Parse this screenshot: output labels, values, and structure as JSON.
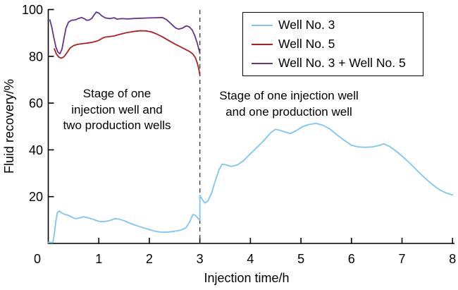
{
  "chart_data": {
    "type": "line",
    "title": "",
    "xlabel": "Injection time/h",
    "ylabel": "Fluid recovery/%",
    "xlim": [
      0,
      8
    ],
    "ylim": [
      0,
      100
    ],
    "x_ticks": [
      0,
      1,
      2,
      3,
      4,
      5,
      6,
      7,
      8
    ],
    "y_ticks": [
      20,
      40,
      60,
      80,
      100
    ],
    "grid": false,
    "legend_position": "top-right",
    "stage_divider_x": 3,
    "divider_color": "#3f3f3f",
    "axis_color": "#000000",
    "series": [
      {
        "name": "Well No. 3",
        "color": "#7EC5F2",
        "points": [
          [
            0,
            0.4
          ],
          [
            0.09,
            0.4
          ],
          [
            0.12,
            4
          ],
          [
            0.15,
            9.5
          ],
          [
            0.18,
            13.2
          ],
          [
            0.22,
            13.9
          ],
          [
            0.27,
            13.0
          ],
          [
            0.33,
            12.4
          ],
          [
            0.4,
            12.0
          ],
          [
            0.47,
            11.2
          ],
          [
            0.54,
            10.6
          ],
          [
            0.62,
            10.9
          ],
          [
            0.7,
            11.4
          ],
          [
            0.78,
            11.0
          ],
          [
            0.86,
            10.5
          ],
          [
            0.95,
            9.8
          ],
          [
            1.04,
            9.3
          ],
          [
            1.13,
            9.4
          ],
          [
            1.22,
            9.8
          ],
          [
            1.32,
            10.6
          ],
          [
            1.4,
            10.4
          ],
          [
            1.5,
            9.7
          ],
          [
            1.62,
            8.6
          ],
          [
            1.75,
            7.6
          ],
          [
            1.88,
            6.7
          ],
          [
            2.0,
            5.9
          ],
          [
            2.12,
            5.2
          ],
          [
            2.25,
            4.8
          ],
          [
            2.38,
            4.9
          ],
          [
            2.5,
            5.2
          ],
          [
            2.62,
            5.7
          ],
          [
            2.72,
            6.6
          ],
          [
            2.8,
            9.2
          ],
          [
            2.86,
            12.3
          ],
          [
            2.91,
            12.1
          ],
          [
            2.96,
            10.8
          ],
          [
            3.0,
            10.0
          ],
          [
            3.0,
            20.6
          ],
          [
            3.04,
            19.0
          ],
          [
            3.1,
            17.3
          ],
          [
            3.16,
            18.2
          ],
          [
            3.23,
            21.5
          ],
          [
            3.3,
            26.5
          ],
          [
            3.38,
            31.5
          ],
          [
            3.44,
            33.9
          ],
          [
            3.52,
            33.6
          ],
          [
            3.62,
            32.9
          ],
          [
            3.74,
            33.5
          ],
          [
            3.86,
            35.3
          ],
          [
            4.0,
            38.3
          ],
          [
            4.14,
            41.3
          ],
          [
            4.28,
            44.3
          ],
          [
            4.4,
            47.3
          ],
          [
            4.5,
            48.8
          ],
          [
            4.58,
            48.4
          ],
          [
            4.68,
            47.7
          ],
          [
            4.79,
            47.0
          ],
          [
            4.9,
            48.1
          ],
          [
            5.02,
            49.8
          ],
          [
            5.15,
            50.8
          ],
          [
            5.3,
            51.3
          ],
          [
            5.44,
            50.5
          ],
          [
            5.58,
            48.8
          ],
          [
            5.72,
            46.3
          ],
          [
            5.86,
            44.0
          ],
          [
            6.0,
            42.0
          ],
          [
            6.13,
            41.3
          ],
          [
            6.27,
            41.1
          ],
          [
            6.42,
            41.3
          ],
          [
            6.55,
            41.9
          ],
          [
            6.64,
            42.6
          ],
          [
            6.76,
            41.4
          ],
          [
            6.9,
            39.2
          ],
          [
            7.04,
            36.6
          ],
          [
            7.18,
            33.8
          ],
          [
            7.32,
            30.7
          ],
          [
            7.46,
            27.8
          ],
          [
            7.6,
            25.2
          ],
          [
            7.74,
            23.0
          ],
          [
            7.87,
            21.6
          ],
          [
            8.0,
            20.7
          ]
        ]
      },
      {
        "name": "Well No. 5",
        "color": "#B01F24",
        "points": [
          [
            0.12,
            83.2
          ],
          [
            0.16,
            81.0
          ],
          [
            0.21,
            79.6
          ],
          [
            0.26,
            79.2
          ],
          [
            0.31,
            79.8
          ],
          [
            0.37,
            81.5
          ],
          [
            0.43,
            83.5
          ],
          [
            0.5,
            84.6
          ],
          [
            0.58,
            85.1
          ],
          [
            0.67,
            85.4
          ],
          [
            0.76,
            85.6
          ],
          [
            0.85,
            85.9
          ],
          [
            0.93,
            86.3
          ],
          [
            1.0,
            86.8
          ],
          [
            1.06,
            87.6
          ],
          [
            1.12,
            88.2
          ],
          [
            1.2,
            88.4
          ],
          [
            1.3,
            88.7
          ],
          [
            1.42,
            89.4
          ],
          [
            1.55,
            90.1
          ],
          [
            1.68,
            90.6
          ],
          [
            1.8,
            90.9
          ],
          [
            1.92,
            90.9
          ],
          [
            2.03,
            90.5
          ],
          [
            2.14,
            89.6
          ],
          [
            2.26,
            88.3
          ],
          [
            2.38,
            86.8
          ],
          [
            2.5,
            85.3
          ],
          [
            2.62,
            84.0
          ],
          [
            2.72,
            82.9
          ],
          [
            2.8,
            82.0
          ],
          [
            2.86,
            81.0
          ],
          [
            2.91,
            79.5
          ],
          [
            2.95,
            77.0
          ],
          [
            2.98,
            74.5
          ],
          [
            3.0,
            71.8
          ]
        ]
      },
      {
        "name": "Well No. 3 + Well No. 5",
        "color": "#64348F",
        "points": [
          [
            0.03,
            95.6
          ],
          [
            0.07,
            92.5
          ],
          [
            0.11,
            88.0
          ],
          [
            0.15,
            84.0
          ],
          [
            0.19,
            81.8
          ],
          [
            0.23,
            81.1
          ],
          [
            0.27,
            83.0
          ],
          [
            0.31,
            87.5
          ],
          [
            0.35,
            92.0
          ],
          [
            0.4,
            94.6
          ],
          [
            0.46,
            95.4
          ],
          [
            0.54,
            95.6
          ],
          [
            0.6,
            96.2
          ],
          [
            0.66,
            96.6
          ],
          [
            0.72,
            96.0
          ],
          [
            0.76,
            95.4
          ],
          [
            0.81,
            95.5
          ],
          [
            0.86,
            96.2
          ],
          [
            0.91,
            97.8
          ],
          [
            0.95,
            98.9
          ],
          [
            1.0,
            98.5
          ],
          [
            1.06,
            97.3
          ],
          [
            1.13,
            96.4
          ],
          [
            1.22,
            96.1
          ],
          [
            1.3,
            96.5
          ],
          [
            1.36,
            95.9
          ],
          [
            1.45,
            96.1
          ],
          [
            1.58,
            96.0
          ],
          [
            1.72,
            96.2
          ],
          [
            1.85,
            96.3
          ],
          [
            2.0,
            96.4
          ],
          [
            2.14,
            96.5
          ],
          [
            2.26,
            96.6
          ],
          [
            2.34,
            95.7
          ],
          [
            2.43,
            93.9
          ],
          [
            2.52,
            92.1
          ],
          [
            2.58,
            91.6
          ],
          [
            2.66,
            92.1
          ],
          [
            2.73,
            93.0
          ],
          [
            2.79,
            92.6
          ],
          [
            2.85,
            91.2
          ],
          [
            2.9,
            88.8
          ],
          [
            2.95,
            85.5
          ],
          [
            3.0,
            81.2
          ]
        ]
      }
    ]
  },
  "annotations": [
    {
      "lines": [
        "Stage of one",
        "injection well and",
        "two production wells"
      ]
    },
    {
      "lines": [
        "Stage of one injection well",
        "and one production well"
      ]
    }
  ]
}
